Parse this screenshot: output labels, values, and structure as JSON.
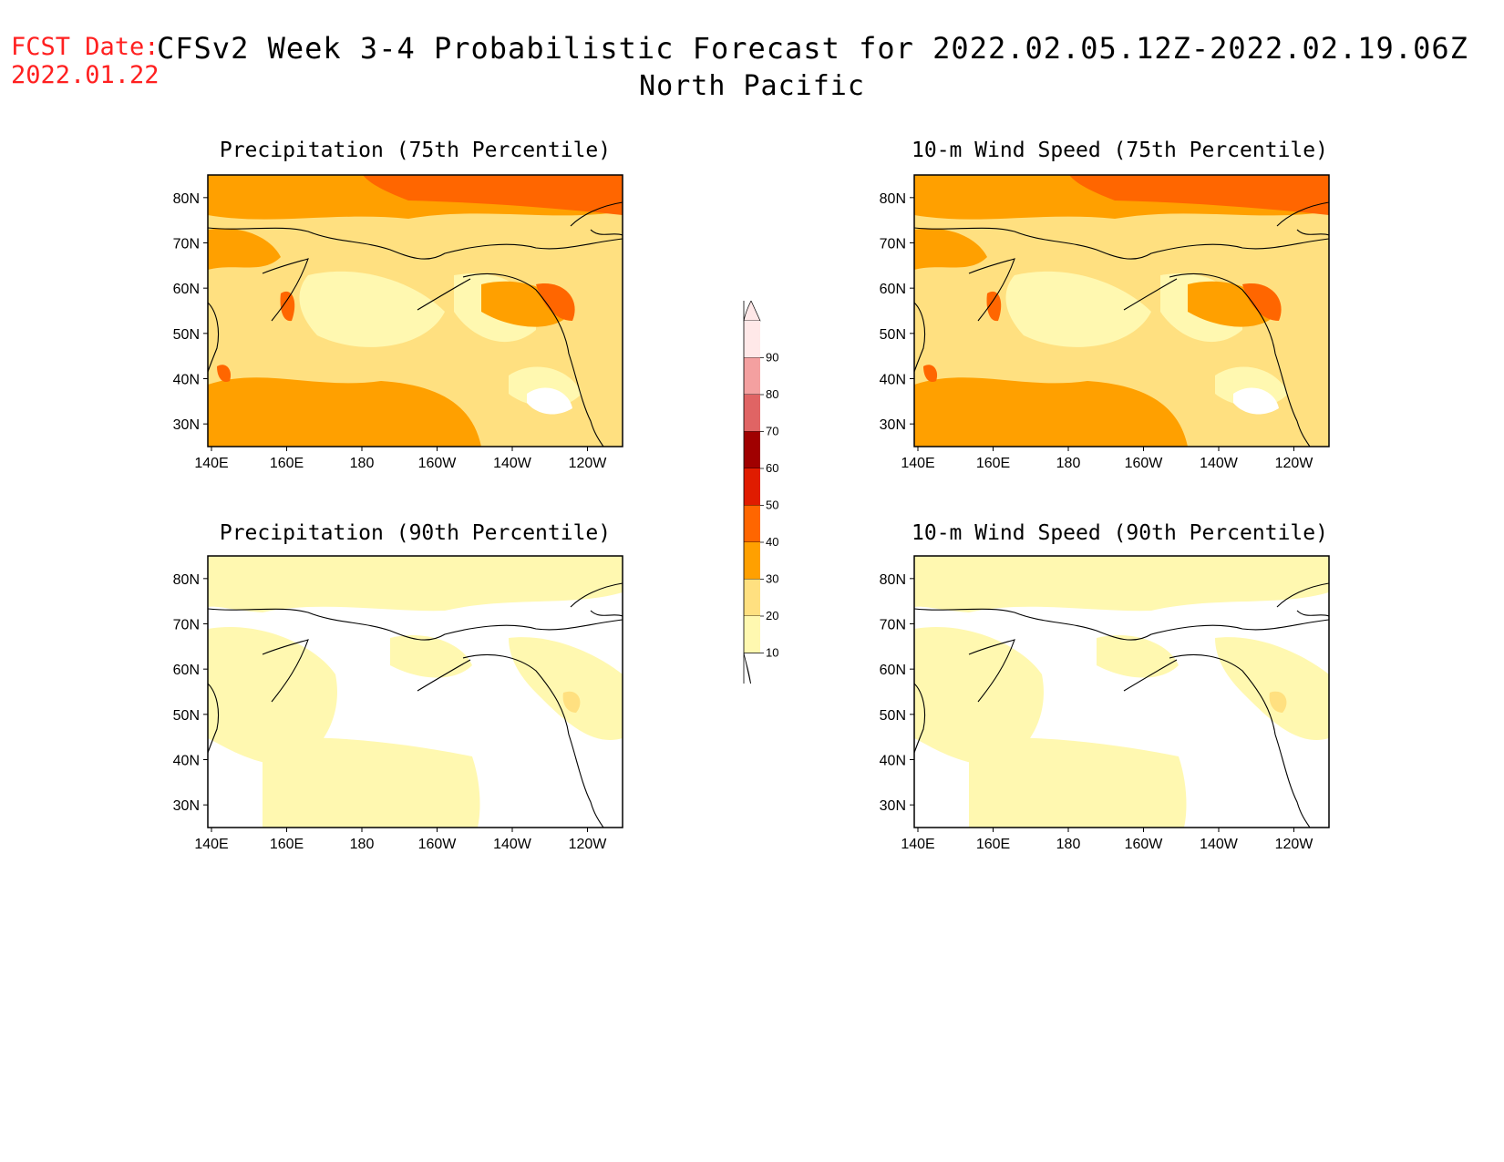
{
  "header": {
    "fcst_label": "FCST Date:",
    "fcst_date": "2022.01.22",
    "title": "CFSv2 Week 3-4 Probabilistic Forecast for 2022.02.05.12Z-2022.02.19.06Z",
    "subtitle": "North Pacific"
  },
  "axes": {
    "lon_labels": [
      "140E",
      "160E",
      "180",
      "160W",
      "140W",
      "120W"
    ],
    "lat_labels": [
      "80N",
      "70N",
      "60N",
      "50N",
      "40N",
      "30N"
    ]
  },
  "panels": [
    {
      "id": "precip75",
      "title": "Precipitation (75th Percentile)",
      "intensity": "high"
    },
    {
      "id": "wind75",
      "title": "10-m Wind Speed (75th Percentile)",
      "intensity": "high"
    },
    {
      "id": "precip90",
      "title": "Precipitation (90th Percentile)",
      "intensity": "low"
    },
    {
      "id": "wind90",
      "title": "10-m Wind Speed (90th Percentile)",
      "intensity": "low"
    }
  ],
  "colorbar": {
    "labels": [
      "90",
      "80",
      "70",
      "60",
      "50",
      "40",
      "30",
      "20",
      "10"
    ],
    "colors": [
      "#ffe8e8",
      "#f4a0a0",
      "#e06464",
      "#a00000",
      "#e01c00",
      "#ff6600",
      "#ffa000",
      "#ffe080",
      "#fff8b0"
    ]
  },
  "palette": {
    "white": "#ffffff",
    "c10": "#fff8b0",
    "c20": "#ffe080",
    "c30": "#ffa000",
    "c40": "#ff6600",
    "c50": "#e01c00",
    "title_red": "#ff2020"
  }
}
